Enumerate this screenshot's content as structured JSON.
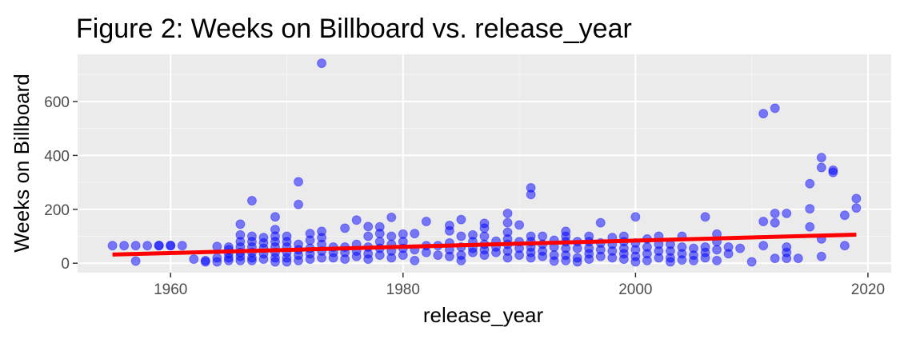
{
  "chart_data": {
    "type": "scatter",
    "title": "Figure 2: Weeks on Billboard vs. release_year",
    "xlabel": "release_year",
    "ylabel": "Weeks on Billboard",
    "xlim": [
      1952,
      2022
    ],
    "ylim": [
      -35,
      775
    ],
    "xticks": [
      1960,
      1980,
      2000,
      2020
    ],
    "yticks": [
      0,
      200,
      400,
      600
    ],
    "grid": true,
    "legend": "none",
    "colors": {
      "panel": "#ebebeb",
      "grid_major": "#ffffff",
      "grid_minor": "#f5f5f5",
      "points": "#0000ff",
      "trend": "#ff0000",
      "tick_label": "#4d4d4d",
      "tick_mark": "#333333"
    },
    "trend_line": {
      "x": [
        1955,
        2019
      ],
      "y": [
        32,
        106
      ]
    },
    "points": [
      [
        1955,
        65
      ],
      [
        1956,
        65
      ],
      [
        1957,
        65
      ],
      [
        1957,
        8
      ],
      [
        1958,
        65
      ],
      [
        1959,
        65
      ],
      [
        1959,
        66
      ],
      [
        1960,
        66
      ],
      [
        1960,
        65
      ],
      [
        1961,
        65
      ],
      [
        1962,
        15
      ],
      [
        1963,
        10
      ],
      [
        1963,
        5
      ],
      [
        1964,
        62
      ],
      [
        1964,
        20
      ],
      [
        1964,
        5
      ],
      [
        1965,
        60
      ],
      [
        1965,
        50
      ],
      [
        1965,
        35
      ],
      [
        1965,
        20
      ],
      [
        1965,
        10
      ],
      [
        1966,
        145
      ],
      [
        1966,
        105
      ],
      [
        1966,
        80
      ],
      [
        1966,
        60
      ],
      [
        1966,
        40
      ],
      [
        1966,
        25
      ],
      [
        1966,
        10
      ],
      [
        1967,
        232
      ],
      [
        1967,
        100
      ],
      [
        1967,
        80
      ],
      [
        1967,
        60
      ],
      [
        1967,
        40
      ],
      [
        1967,
        20
      ],
      [
        1967,
        10
      ],
      [
        1968,
        95
      ],
      [
        1968,
        75
      ],
      [
        1968,
        55
      ],
      [
        1968,
        35
      ],
      [
        1968,
        15
      ],
      [
        1969,
        172
      ],
      [
        1969,
        125
      ],
      [
        1969,
        100
      ],
      [
        1969,
        80
      ],
      [
        1969,
        60
      ],
      [
        1969,
        40
      ],
      [
        1969,
        20
      ],
      [
        1969,
        5
      ],
      [
        1970,
        100
      ],
      [
        1970,
        80
      ],
      [
        1970,
        60
      ],
      [
        1970,
        40
      ],
      [
        1970,
        20
      ],
      [
        1970,
        5
      ],
      [
        1971,
        302
      ],
      [
        1971,
        218
      ],
      [
        1971,
        70
      ],
      [
        1971,
        50
      ],
      [
        1971,
        30
      ],
      [
        1971,
        10
      ],
      [
        1972,
        110
      ],
      [
        1972,
        85
      ],
      [
        1972,
        55
      ],
      [
        1972,
        35
      ],
      [
        1972,
        15
      ],
      [
        1973,
        742
      ],
      [
        1973,
        118
      ],
      [
        1973,
        95
      ],
      [
        1973,
        70
      ],
      [
        1973,
        45
      ],
      [
        1973,
        20
      ],
      [
        1974,
        60
      ],
      [
        1974,
        40
      ],
      [
        1974,
        20
      ],
      [
        1975,
        130
      ],
      [
        1975,
        60
      ],
      [
        1975,
        40
      ],
      [
        1975,
        15
      ],
      [
        1976,
        160
      ],
      [
        1976,
        70
      ],
      [
        1976,
        45
      ],
      [
        1976,
        25
      ],
      [
        1977,
        136
      ],
      [
        1977,
        100
      ],
      [
        1977,
        60
      ],
      [
        1977,
        35
      ],
      [
        1977,
        15
      ],
      [
        1978,
        135
      ],
      [
        1978,
        110
      ],
      [
        1978,
        80
      ],
      [
        1978,
        55
      ],
      [
        1978,
        30
      ],
      [
        1979,
        170
      ],
      [
        1979,
        100
      ],
      [
        1979,
        70
      ],
      [
        1979,
        45
      ],
      [
        1979,
        20
      ],
      [
        1980,
        108
      ],
      [
        1980,
        80
      ],
      [
        1980,
        55
      ],
      [
        1980,
        30
      ],
      [
        1981,
        110
      ],
      [
        1981,
        50
      ],
      [
        1981,
        10
      ],
      [
        1982,
        155
      ],
      [
        1982,
        65
      ],
      [
        1982,
        40
      ],
      [
        1983,
        65
      ],
      [
        1983,
        30
      ],
      [
        1984,
        140
      ],
      [
        1984,
        120
      ],
      [
        1984,
        75
      ],
      [
        1984,
        50
      ],
      [
        1984,
        25
      ],
      [
        1985,
        162
      ],
      [
        1985,
        100
      ],
      [
        1985,
        60
      ],
      [
        1985,
        30
      ],
      [
        1985,
        10
      ],
      [
        1986,
        105
      ],
      [
        1986,
        80
      ],
      [
        1986,
        55
      ],
      [
        1986,
        40
      ],
      [
        1987,
        148
      ],
      [
        1987,
        130
      ],
      [
        1987,
        100
      ],
      [
        1987,
        70
      ],
      [
        1987,
        50
      ],
      [
        1987,
        30
      ],
      [
        1988,
        82
      ],
      [
        1988,
        60
      ],
      [
        1988,
        40
      ],
      [
        1989,
        185
      ],
      [
        1989,
        150
      ],
      [
        1989,
        115
      ],
      [
        1989,
        90
      ],
      [
        1989,
        70
      ],
      [
        1989,
        45
      ],
      [
        1989,
        20
      ],
      [
        1990,
        142
      ],
      [
        1990,
        80
      ],
      [
        1990,
        55
      ],
      [
        1990,
        30
      ],
      [
        1991,
        280
      ],
      [
        1991,
        255
      ],
      [
        1991,
        100
      ],
      [
        1991,
        80
      ],
      [
        1991,
        60
      ],
      [
        1991,
        40
      ],
      [
        1991,
        20
      ],
      [
        1992,
        100
      ],
      [
        1992,
        70
      ],
      [
        1992,
        45
      ],
      [
        1992,
        25
      ],
      [
        1993,
        85
      ],
      [
        1993,
        60
      ],
      [
        1993,
        30
      ],
      [
        1993,
        8
      ],
      [
        1994,
        118
      ],
      [
        1994,
        100
      ],
      [
        1994,
        80
      ],
      [
        1994,
        55
      ],
      [
        1994,
        30
      ],
      [
        1994,
        10
      ],
      [
        1995,
        80
      ],
      [
        1995,
        55
      ],
      [
        1995,
        20
      ],
      [
        1995,
        5
      ],
      [
        1996,
        100
      ],
      [
        1996,
        80
      ],
      [
        1996,
        55
      ],
      [
        1996,
        35
      ],
      [
        1996,
        15
      ],
      [
        1997,
        150
      ],
      [
        1997,
        75
      ],
      [
        1997,
        50
      ],
      [
        1997,
        25
      ],
      [
        1998,
        95
      ],
      [
        1998,
        70
      ],
      [
        1998,
        45
      ],
      [
        1998,
        20
      ],
      [
        1999,
        100
      ],
      [
        1999,
        80
      ],
      [
        1999,
        55
      ],
      [
        1999,
        35
      ],
      [
        1999,
        15
      ],
      [
        2000,
        172
      ],
      [
        2000,
        75
      ],
      [
        2000,
        50
      ],
      [
        2000,
        25
      ],
      [
        2000,
        5
      ],
      [
        2001,
        90
      ],
      [
        2001,
        60
      ],
      [
        2001,
        35
      ],
      [
        2001,
        10
      ],
      [
        2002,
        100
      ],
      [
        2002,
        70
      ],
      [
        2002,
        45
      ],
      [
        2002,
        20
      ],
      [
        2003,
        70
      ],
      [
        2003,
        45
      ],
      [
        2003,
        20
      ],
      [
        2003,
        5
      ],
      [
        2004,
        100
      ],
      [
        2004,
        60
      ],
      [
        2004,
        35
      ],
      [
        2004,
        12
      ],
      [
        2005,
        55
      ],
      [
        2005,
        30
      ],
      [
        2005,
        10
      ],
      [
        2006,
        172
      ],
      [
        2006,
        60
      ],
      [
        2006,
        40
      ],
      [
        2006,
        20
      ],
      [
        2007,
        108
      ],
      [
        2007,
        80
      ],
      [
        2007,
        50
      ],
      [
        2007,
        10
      ],
      [
        2008,
        60
      ],
      [
        2008,
        35
      ],
      [
        2009,
        55
      ],
      [
        2010,
        5
      ],
      [
        2011,
        555
      ],
      [
        2011,
        155
      ],
      [
        2011,
        65
      ],
      [
        2012,
        575
      ],
      [
        2012,
        185
      ],
      [
        2012,
        150
      ],
      [
        2012,
        18
      ],
      [
        2013,
        185
      ],
      [
        2013,
        60
      ],
      [
        2013,
        40
      ],
      [
        2013,
        18
      ],
      [
        2014,
        18
      ],
      [
        2015,
        295
      ],
      [
        2015,
        202
      ],
      [
        2015,
        135
      ],
      [
        2016,
        392
      ],
      [
        2016,
        355
      ],
      [
        2016,
        90
      ],
      [
        2016,
        25
      ],
      [
        2017,
        345
      ],
      [
        2017,
        337
      ],
      [
        2018,
        178
      ],
      [
        2018,
        65
      ],
      [
        2019,
        240
      ],
      [
        2019,
        205
      ]
    ]
  }
}
